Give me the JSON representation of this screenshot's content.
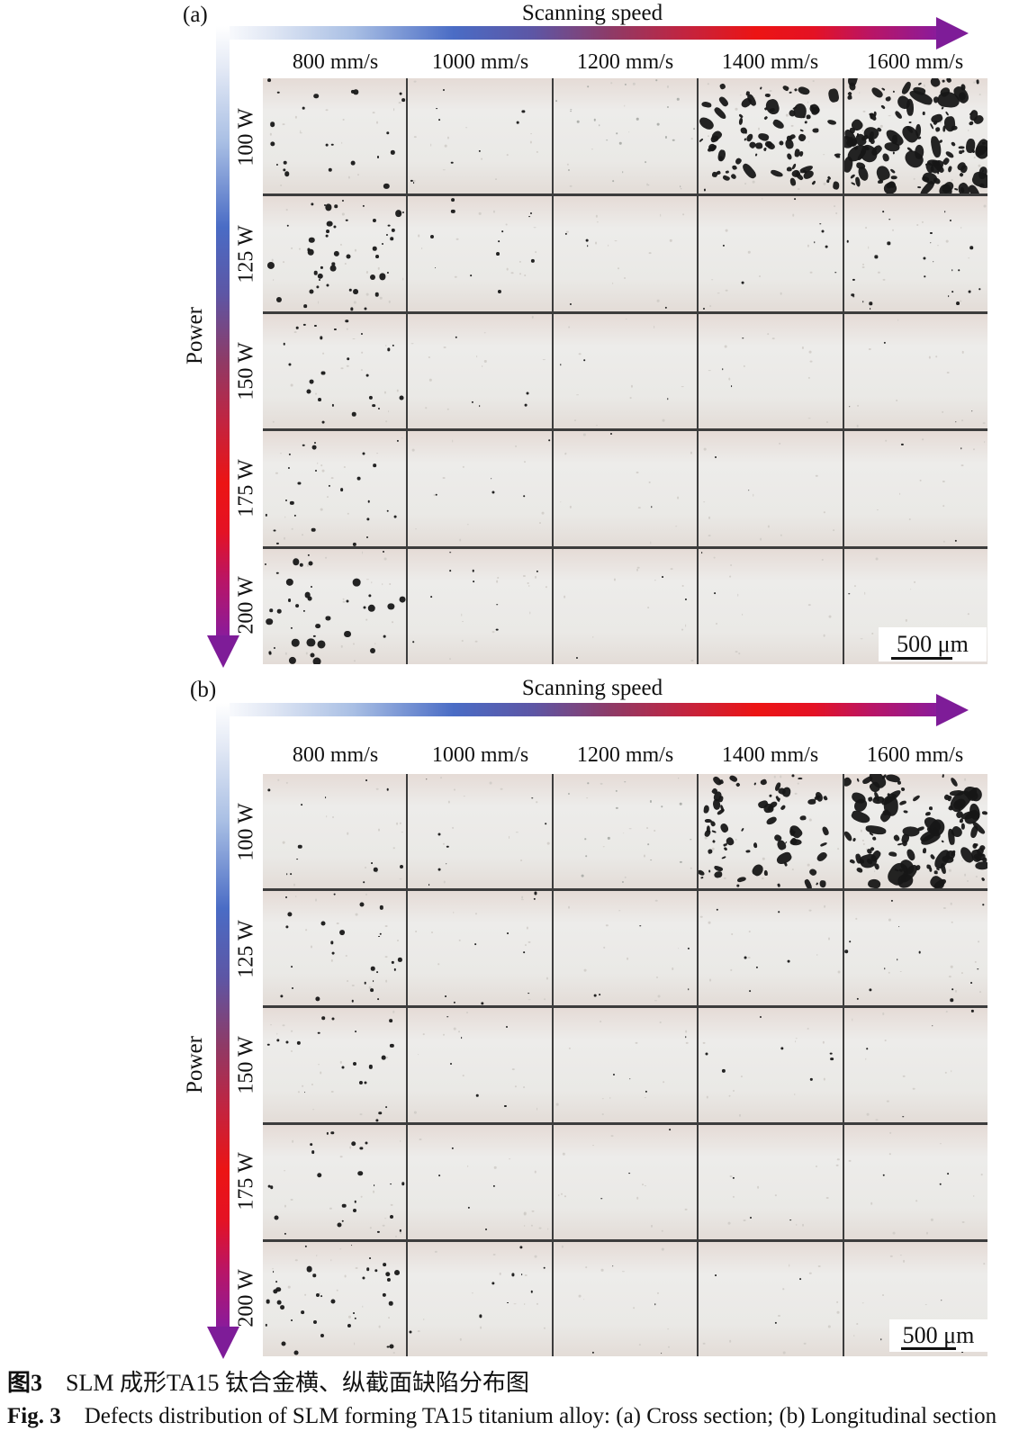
{
  "axes": {
    "x_title": "Scanning speed",
    "y_title": "Power",
    "speeds": [
      "800 mm/s",
      "1000 mm/s",
      "1200 mm/s",
      "1400 mm/s",
      "1600 mm/s"
    ],
    "powers": [
      "100 W",
      "125 W",
      "150 W",
      "175 W",
      "200 W"
    ]
  },
  "figure": {
    "caption_zh": {
      "label": "图3",
      "text": "SLM 成形TA15 钛合金横、纵截面缺陷分布图"
    },
    "caption_en": {
      "label": "Fig. 3",
      "text": "Defects distribution of SLM forming TA15 titanium alloy: (a) Cross section; (b) Longitudinal section"
    }
  },
  "colors": {
    "arrow_stops": [
      [
        0,
        "#ffffff"
      ],
      [
        7,
        "#e3e9f5"
      ],
      [
        19,
        "#a9bfe4"
      ],
      [
        33,
        "#4a6cc5"
      ],
      [
        44,
        "#5d56a5"
      ],
      [
        55,
        "#8f3a66"
      ],
      [
        65,
        "#c22440"
      ],
      [
        75,
        "#ec1414"
      ],
      [
        83,
        "#e41224"
      ],
      [
        91,
        "#b91566"
      ],
      [
        100,
        "#8b1b9a"
      ]
    ],
    "arrow_head": "#7e1c98",
    "grid_line": "#3c3c3c",
    "cell_bg_top": "#e5dbd6",
    "cell_bg_mid": "#edecea",
    "cell_bg_low": "#eae9e6",
    "cell_bg_bot": "#e3dcd7",
    "defect": "#161616",
    "faint_defect": "#a7aaa5",
    "speckle": "#cdc9c4"
  },
  "panels": [
    {
      "label": "(a)",
      "scale_bar": "500 μm",
      "defect_cells": [
        [
          {
            "n": 22,
            "rmin": 1.0,
            "rmax": 3.2,
            "t": "round",
            "sp": 16
          },
          {
            "n": 9,
            "rmin": 0.8,
            "rmax": 1.8,
            "t": "round",
            "sp": 14
          },
          {
            "n": 26,
            "rmin": 0.7,
            "rmax": 1.4,
            "t": "faint",
            "sp": 10
          },
          {
            "n": 85,
            "rmin": 1.0,
            "rmax": 5.0,
            "t": "blob",
            "sp": 20
          },
          {
            "n": 130,
            "rmin": 1.0,
            "rmax": 6.5,
            "t": "blob",
            "sp": 20
          }
        ],
        [
          {
            "n": 48,
            "rmin": 1.0,
            "rmax": 4.2,
            "t": "round",
            "sp": 18
          },
          {
            "n": 12,
            "rmin": 0.8,
            "rmax": 2.2,
            "t": "round",
            "sp": 14
          },
          {
            "n": 5,
            "rmin": 0.8,
            "rmax": 1.5,
            "t": "round",
            "sp": 14
          },
          {
            "n": 9,
            "rmin": 0.7,
            "rmax": 1.6,
            "t": "round",
            "sp": 14
          },
          {
            "n": 26,
            "rmin": 0.7,
            "rmax": 2.0,
            "t": "round",
            "sp": 16
          }
        ],
        [
          {
            "n": 24,
            "rmin": 1.0,
            "rmax": 2.8,
            "t": "round",
            "sp": 16
          },
          {
            "n": 5,
            "rmin": 0.8,
            "rmax": 1.6,
            "t": "round",
            "sp": 12
          },
          {
            "n": 3,
            "rmin": 0.7,
            "rmax": 1.3,
            "t": "round",
            "sp": 12
          },
          {
            "n": 3,
            "rmin": 0.7,
            "rmax": 1.4,
            "t": "round",
            "sp": 12
          },
          {
            "n": 4,
            "rmin": 0.7,
            "rmax": 1.4,
            "t": "round",
            "sp": 12
          }
        ],
        [
          {
            "n": 26,
            "rmin": 1.0,
            "rmax": 2.6,
            "t": "round",
            "sp": 16
          },
          {
            "n": 5,
            "rmin": 0.8,
            "rmax": 1.6,
            "t": "round",
            "sp": 12
          },
          {
            "n": 2,
            "rmin": 0.7,
            "rmax": 1.2,
            "t": "round",
            "sp": 12
          },
          {
            "n": 2,
            "rmin": 0.7,
            "rmax": 1.2,
            "t": "round",
            "sp": 12
          },
          {
            "n": 3,
            "rmin": 0.7,
            "rmax": 1.2,
            "t": "round",
            "sp": 12
          }
        ],
        [
          {
            "n": 40,
            "rmin": 1.0,
            "rmax": 4.6,
            "t": "round",
            "sp": 18
          },
          {
            "n": 9,
            "rmin": 0.8,
            "rmax": 2.2,
            "t": "round",
            "sp": 14
          },
          {
            "n": 3,
            "rmin": 0.7,
            "rmax": 1.3,
            "t": "round",
            "sp": 12
          },
          {
            "n": 2,
            "rmin": 0.7,
            "rmax": 1.2,
            "t": "round",
            "sp": 12
          },
          {
            "n": 2,
            "rmin": 0.7,
            "rmax": 1.2,
            "t": "round",
            "sp": 12
          }
        ]
      ]
    },
    {
      "label": "(b)",
      "scale_bar": "500 μm",
      "defect_cells": [
        [
          {
            "n": 13,
            "rmin": 0.8,
            "rmax": 2.4,
            "t": "round",
            "sp": 16
          },
          {
            "n": 8,
            "rmin": 0.7,
            "rmax": 1.6,
            "t": "round",
            "sp": 14
          },
          {
            "n": 18,
            "rmin": 0.7,
            "rmax": 1.4,
            "t": "faint",
            "sp": 10
          },
          {
            "n": 75,
            "rmin": 1.0,
            "rmax": 4.5,
            "t": "blob",
            "sp": 20
          },
          {
            "n": 115,
            "rmin": 1.2,
            "rmax": 6.5,
            "t": "blob",
            "sp": 20
          }
        ],
        [
          {
            "n": 26,
            "rmin": 0.9,
            "rmax": 3.0,
            "t": "round",
            "sp": 16
          },
          {
            "n": 9,
            "rmin": 0.8,
            "rmax": 1.8,
            "t": "round",
            "sp": 14
          },
          {
            "n": 5,
            "rmin": 0.7,
            "rmax": 1.4,
            "t": "round",
            "sp": 12
          },
          {
            "n": 6,
            "rmin": 0.7,
            "rmax": 1.5,
            "t": "round",
            "sp": 12
          },
          {
            "n": 14,
            "rmin": 0.7,
            "rmax": 1.8,
            "t": "round",
            "sp": 14
          }
        ],
        [
          {
            "n": 20,
            "rmin": 0.9,
            "rmax": 2.6,
            "t": "round",
            "sp": 16
          },
          {
            "n": 6,
            "rmin": 0.8,
            "rmax": 1.6,
            "t": "round",
            "sp": 12
          },
          {
            "n": 4,
            "rmin": 0.7,
            "rmax": 1.4,
            "t": "round",
            "sp": 12
          },
          {
            "n": 7,
            "rmin": 0.9,
            "rmax": 2.4,
            "t": "round",
            "sp": 12
          },
          {
            "n": 4,
            "rmin": 0.7,
            "rmax": 1.4,
            "t": "round",
            "sp": 12
          }
        ],
        [
          {
            "n": 24,
            "rmin": 0.9,
            "rmax": 3.0,
            "t": "round",
            "sp": 16
          },
          {
            "n": 5,
            "rmin": 0.8,
            "rmax": 1.6,
            "t": "round",
            "sp": 12
          },
          {
            "n": 3,
            "rmin": 0.7,
            "rmax": 1.3,
            "t": "round",
            "sp": 12
          },
          {
            "n": 3,
            "rmin": 0.7,
            "rmax": 1.3,
            "t": "round",
            "sp": 12
          },
          {
            "n": 3,
            "rmin": 0.7,
            "rmax": 1.3,
            "t": "round",
            "sp": 12
          }
        ],
        [
          {
            "n": 36,
            "rmin": 0.9,
            "rmax": 3.4,
            "t": "round",
            "sp": 18
          },
          {
            "n": 9,
            "rmin": 0.8,
            "rmax": 1.8,
            "t": "round",
            "sp": 14
          },
          {
            "n": 4,
            "rmin": 0.7,
            "rmax": 1.4,
            "t": "round",
            "sp": 12
          },
          {
            "n": 3,
            "rmin": 0.7,
            "rmax": 1.3,
            "t": "round",
            "sp": 12
          },
          {
            "n": 3,
            "rmin": 0.7,
            "rmax": 1.3,
            "t": "round",
            "sp": 12
          }
        ]
      ]
    }
  ]
}
